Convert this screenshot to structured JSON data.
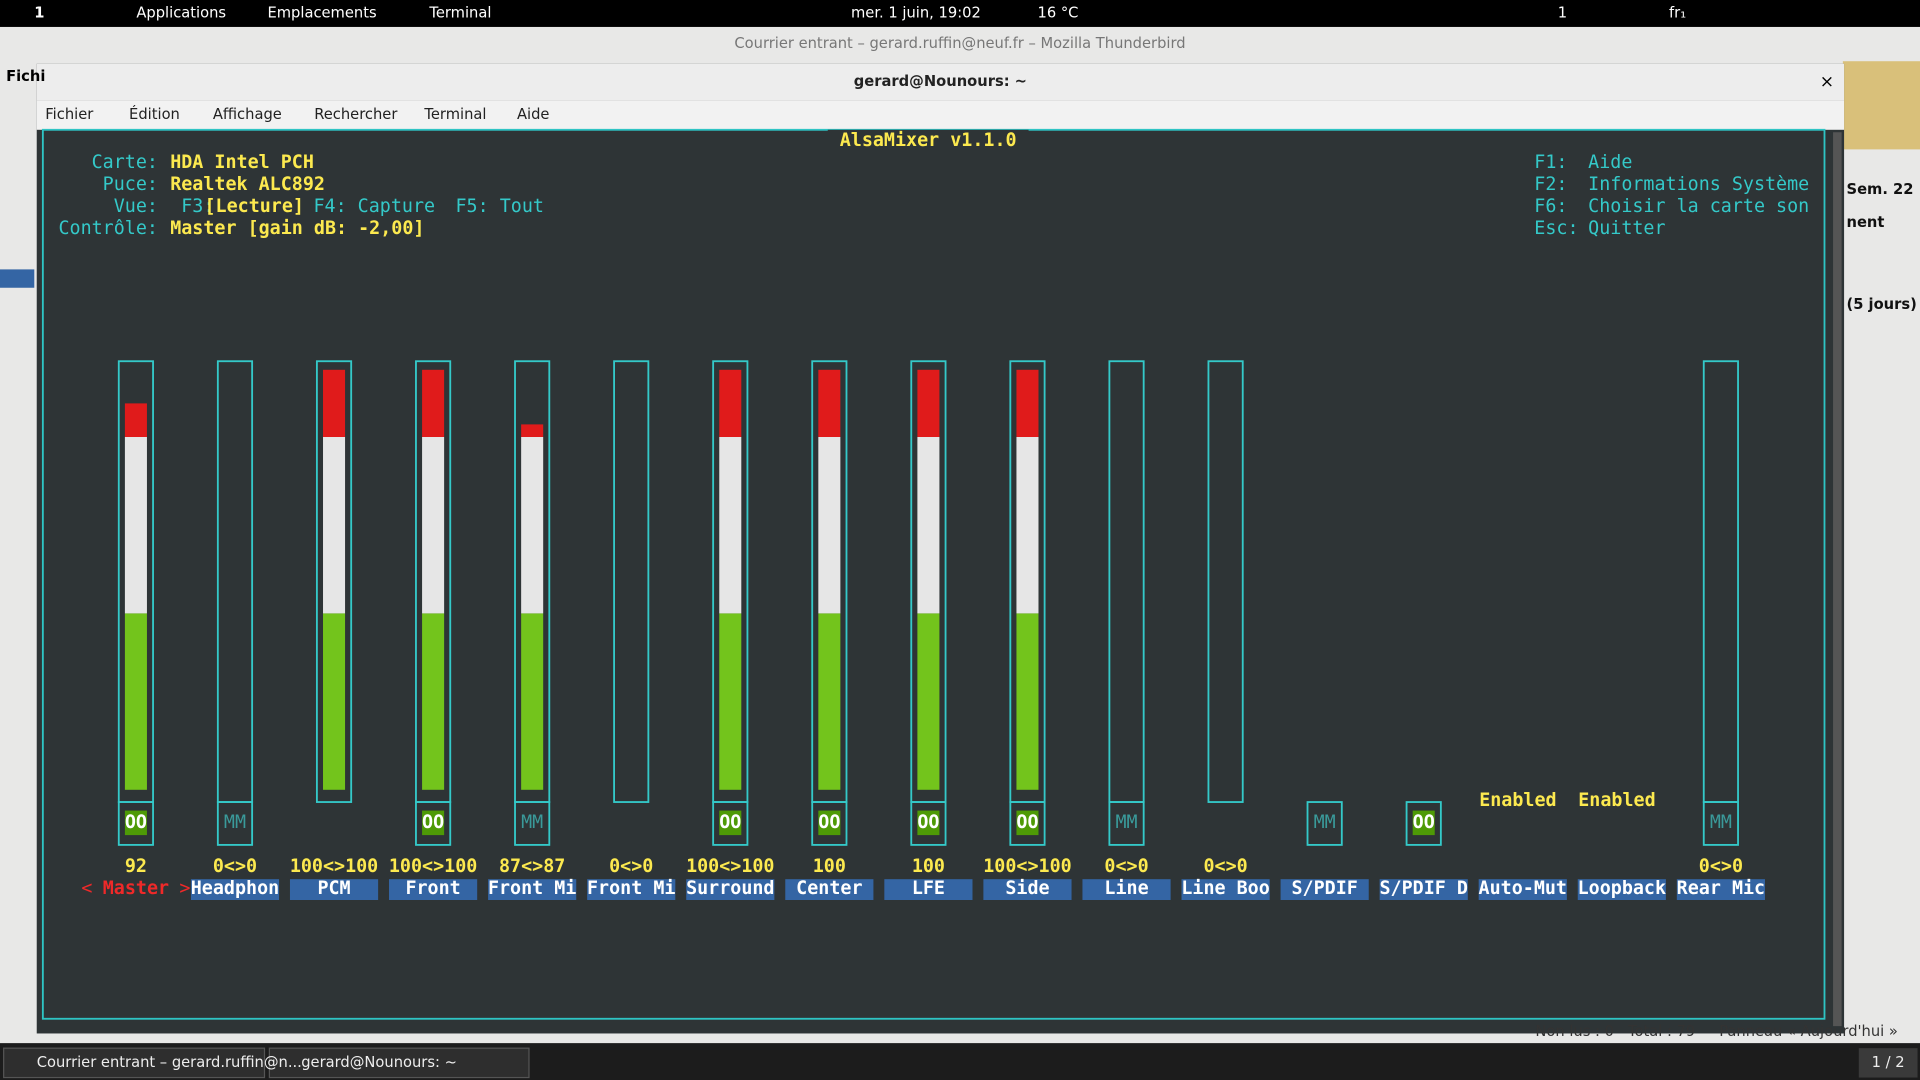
{
  "top_bar": {
    "workspace": "1",
    "menus": [
      "Applications",
      "Emplacements",
      "Terminal"
    ],
    "clock": "mer.  1 juin, 19:02",
    "weather": "16 °C",
    "desk": "1",
    "keyboard": "fr₁"
  },
  "background_window": {
    "title": "Courrier entrant – gerard.ruffin@neuf.fr – Mozilla Thunderbird",
    "left_text": "Fichi",
    "right_texts": [
      "Sem. 22",
      "nent",
      "(5 jours)"
    ],
    "status": [
      "Non lus : 0",
      "Total : 79",
      "Panneau « Aujourd'hui »"
    ]
  },
  "terminal": {
    "title": "gerard@Nounours: ~",
    "menu": [
      "Fichier",
      "Édition",
      "Affichage",
      "Rechercher",
      "Terminal",
      "Aide"
    ]
  },
  "mixer": {
    "title": "AlsaMixer v1.1.0",
    "info": [
      {
        "label": "Carte:",
        "value": "HDA Intel PCH"
      },
      {
        "label": "Puce:",
        "value": "Realtek ALC892"
      },
      {
        "label": "Contrôle:",
        "value": "Master [gain dB: -2,00]"
      }
    ],
    "view": {
      "label": "Vue:",
      "items": [
        "F3:",
        "[Lecture]",
        "F4: Capture",
        "F5: Tout"
      ]
    },
    "keys": [
      {
        "key": "F1:",
        "action": "Aide"
      },
      {
        "key": "F2:",
        "action": "Informations Système"
      },
      {
        "key": "F6:",
        "action": "Choisir la carte son"
      },
      {
        "key": "Esc:",
        "action": "Quitter"
      }
    ],
    "selected": 0,
    "channels": [
      {
        "name": "Master",
        "level": 92,
        "switch": "OO"
      },
      {
        "name": "Headphon",
        "level": 0,
        "level_label": "0<>0",
        "switch": "MM"
      },
      {
        "name": "PCM",
        "level": 100,
        "level_label": "100<>100"
      },
      {
        "name": "Front",
        "level": 100,
        "level_label": "100<>100",
        "switch": "OO"
      },
      {
        "name": "Front Mi",
        "level": 87,
        "level_label": "87<>87",
        "switch": "MM"
      },
      {
        "name": "Front Mi",
        "level": 0,
        "level_label": "0<>0"
      },
      {
        "name": "Surround",
        "level": 100,
        "level_label": "100<>100",
        "switch": "OO"
      },
      {
        "name": "Center",
        "level": 100,
        "switch": "OO"
      },
      {
        "name": "LFE",
        "level": 100,
        "switch": "OO"
      },
      {
        "name": "Side",
        "level": 100,
        "level_label": "100<>100",
        "switch": "OO"
      },
      {
        "name": "Line",
        "level": 0,
        "level_label": "0<>0",
        "switch": "MM"
      },
      {
        "name": "Line Boo",
        "level": 0,
        "level_label": "0<>0"
      },
      {
        "name": "S/PDIF",
        "switch": "MM"
      },
      {
        "name": "S/PDIF D",
        "switch": "OO"
      },
      {
        "name": "Auto-Mut",
        "state": "Enabled"
      },
      {
        "name": "Loopback",
        "state": "Enabled"
      },
      {
        "name": "Rear Mic",
        "level": 0,
        "level_label": "0<>0",
        "switch": "MM"
      }
    ]
  },
  "taskbar": {
    "items": [
      "Courrier entrant – gerard.ruffin@n...",
      "gerard@Nounours: ~"
    ],
    "pager": "1 / 2"
  }
}
